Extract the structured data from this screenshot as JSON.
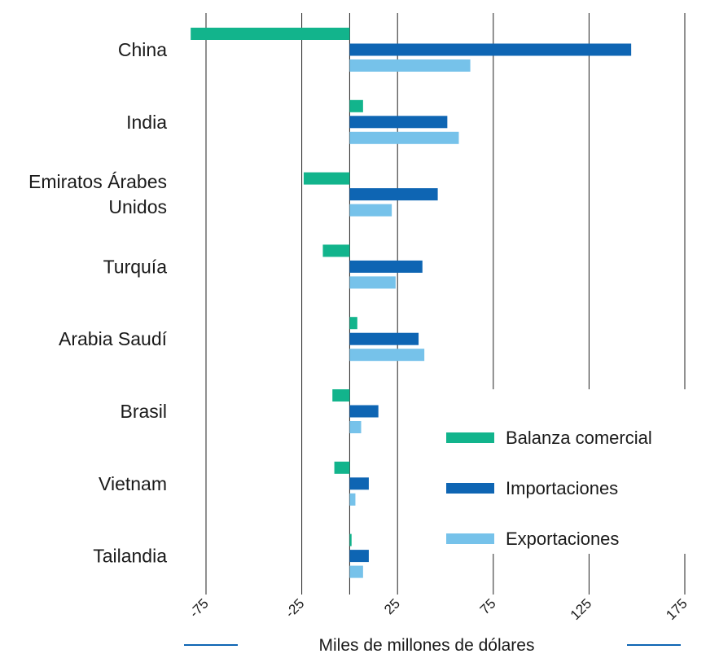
{
  "chart_data": {
    "type": "bar",
    "orientation": "horizontal",
    "title": "",
    "xlabel": "Miles de millones de dólares",
    "ylabel": "",
    "xlim": [
      -75,
      175
    ],
    "x_ticks": [
      -75,
      -25,
      25,
      75,
      125,
      175
    ],
    "grid": true,
    "legend_position": "bottom-right",
    "categories": [
      "China",
      "India",
      "Emiratos Árabes Unidos",
      "Turquía",
      "Arabia Saudí",
      "Brasil",
      "Vietnam",
      "Tailandia"
    ],
    "category_lines": [
      [
        "China"
      ],
      [
        "India"
      ],
      [
        "Emiratos Árabes",
        "Unidos"
      ],
      [
        "Turquía"
      ],
      [
        "Arabia Saudí"
      ],
      [
        "Brasil"
      ],
      [
        "Vietnam"
      ],
      [
        "Tailandia"
      ]
    ],
    "series": [
      {
        "name": "Balanza comercial",
        "color": "#12b48c",
        "values": [
          -83,
          7,
          -24,
          -14,
          4,
          -9,
          -8,
          1
        ]
      },
      {
        "name": "Importaciones",
        "color": "#0e65b3",
        "values": [
          147,
          51,
          46,
          38,
          36,
          15,
          10,
          10
        ]
      },
      {
        "name": "Exportaciones",
        "color": "#76c2ea",
        "values": [
          63,
          57,
          22,
          24,
          39,
          6,
          3,
          7
        ]
      }
    ]
  }
}
